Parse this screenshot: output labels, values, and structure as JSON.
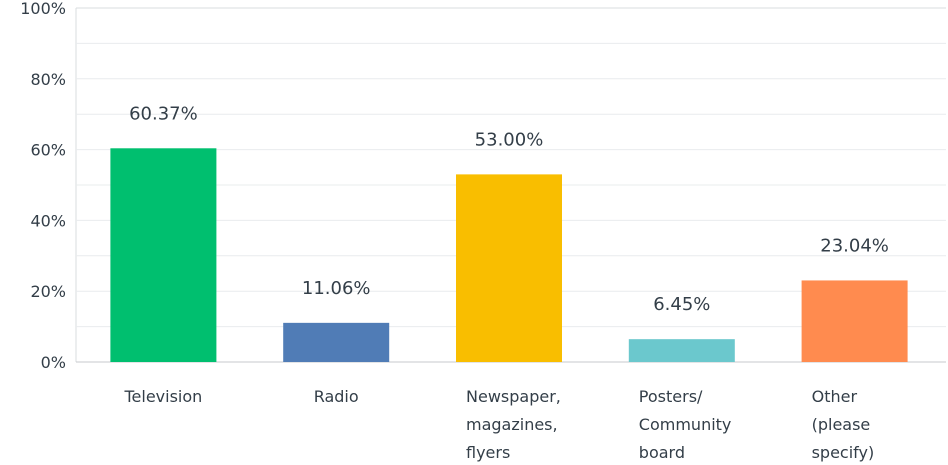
{
  "chart_data": {
    "type": "bar",
    "categories": [
      [
        "Television"
      ],
      [
        "Radio"
      ],
      [
        "Newspaper,",
        "magazines,",
        "flyers"
      ],
      [
        "Posters/",
        "Community",
        "board"
      ],
      [
        "Other",
        "(please",
        "specify)"
      ]
    ],
    "values": [
      60.37,
      11.06,
      53.0,
      6.45,
      23.04
    ],
    "data_labels": [
      "60.37%",
      "11.06%",
      "53.00%",
      "6.45%",
      "23.04%"
    ],
    "colors": [
      "#00bf6f",
      "#507cb6",
      "#f9be00",
      "#6bc8cd",
      "#ff8b4f"
    ],
    "ylim": [
      0,
      100
    ],
    "yticks": [
      0,
      20,
      40,
      60,
      80,
      100
    ],
    "ytick_labels": [
      "0%",
      "20%",
      "40%",
      "60%",
      "80%",
      "100%"
    ],
    "grid": true,
    "legend": "none"
  }
}
